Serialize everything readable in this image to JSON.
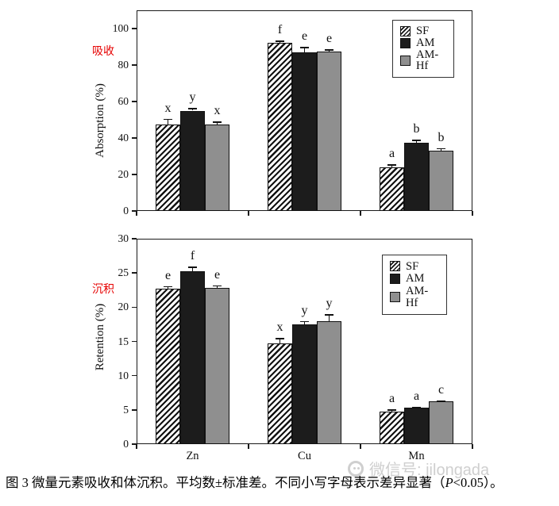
{
  "figure": {
    "caption": {
      "prefix": "图 3  微量元素吸收和体沉积。平均数±标准差。不同小写字母表示差异显著（",
      "p": "P",
      "suffix": "<0.05）。"
    },
    "watermark": "微信号: jilongada"
  },
  "colors": {
    "panel_label_red": "#e60000",
    "bar_black": "#1c1c1c",
    "bar_gray": "#8f8f8f",
    "axis": "#1a1a1a",
    "watermark_gray": "#cfcfcf"
  },
  "chart_data": [
    {
      "type": "bar",
      "panel_label": "吸收",
      "ylabel": "Absorption (%)",
      "categories": [
        "Zn",
        "Cu",
        "Mn"
      ],
      "show_category_labels": false,
      "ylim": [
        0,
        110
      ],
      "yticks": [
        0,
        20,
        40,
        60,
        80,
        100
      ],
      "legend_position": "top-right",
      "legend": [
        "SF",
        "AM",
        "AM-Hf"
      ],
      "series": [
        {
          "name": "SF",
          "style": "hatched",
          "values": [
            47.5,
            92.0,
            24.0
          ],
          "errors": [
            3.0,
            1.5,
            1.5
          ],
          "letters": [
            "x",
            "f",
            "a"
          ]
        },
        {
          "name": "AM",
          "style": "black",
          "values": [
            55.0,
            87.0,
            37.5
          ],
          "errors": [
            1.5,
            3.0,
            1.5
          ],
          "letters": [
            "y",
            "e",
            "b"
          ]
        },
        {
          "name": "AM-Hf",
          "style": "gray",
          "values": [
            47.5,
            87.5,
            33.0
          ],
          "errors": [
            1.5,
            1.0,
            1.5
          ],
          "letters": [
            "x",
            "e",
            "b"
          ]
        }
      ]
    },
    {
      "type": "bar",
      "panel_label": "沉积",
      "ylabel": "Retention (%)",
      "categories": [
        "Zn",
        "Cu",
        "Mn"
      ],
      "show_category_labels": true,
      "ylim": [
        0,
        30
      ],
      "yticks": [
        0,
        5,
        10,
        15,
        20,
        25,
        30
      ],
      "legend_position": "top-right",
      "legend": [
        "SF",
        "AM",
        "AM-Hf"
      ],
      "series": [
        {
          "name": "SF",
          "style": "hatched",
          "values": [
            22.7,
            14.7,
            4.7
          ],
          "errors": [
            0.4,
            0.8,
            0.4
          ],
          "letters": [
            "e",
            "x",
            "a"
          ]
        },
        {
          "name": "AM",
          "style": "black",
          "values": [
            25.2,
            17.5,
            5.3
          ],
          "errors": [
            0.7,
            0.5,
            0.2
          ],
          "letters": [
            "f",
            "y",
            "a"
          ]
        },
        {
          "name": "AM-Hf",
          "style": "gray",
          "values": [
            22.8,
            18.0,
            6.2
          ],
          "errors": [
            0.4,
            1.0,
            0.2
          ],
          "letters": [
            "e",
            "y",
            "c"
          ]
        }
      ]
    }
  ]
}
